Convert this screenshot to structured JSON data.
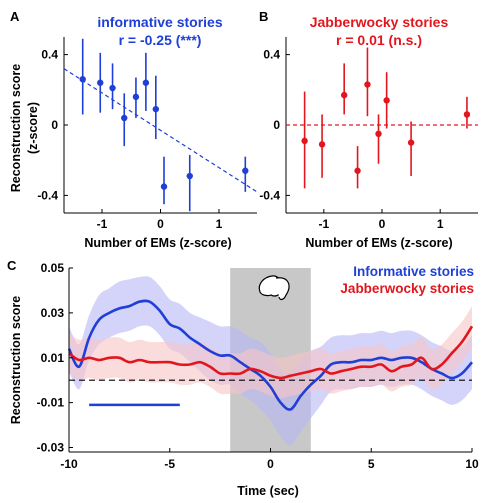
{
  "colors": {
    "informative": "#1f3fd6",
    "jabberwocky": "#e3161e",
    "informative_band": "#b7b8f6",
    "jabberwocky_band": "#f7c5c7",
    "shade": "#c8c8c8"
  },
  "chart_data": [
    {
      "panel": "A",
      "type": "scatter",
      "title": "informative stories",
      "subtitle": "r = -0.25 (***)",
      "xlabel": "Number of EMs (z-score)",
      "ylabel": "Reconstruction score",
      "ylabel2": "(z-score)",
      "xlim": [
        -1.65,
        1.65
      ],
      "ylim": [
        -0.5,
        0.5
      ],
      "xticks": [
        -1,
        0,
        1
      ],
      "yticks": [
        -0.4,
        0,
        0.4
      ],
      "xtick_labels": [
        "-1",
        "0",
        "1"
      ],
      "ytick_labels": [
        "-0.4",
        "0",
        "0.4"
      ],
      "trend_line": {
        "style": "dashed",
        "x": [
          -1.65,
          1.65
        ],
        "y": [
          0.32,
          -0.38
        ]
      },
      "points": [
        {
          "x": -1.33,
          "y": 0.26,
          "lo": 0.06,
          "hi": 0.49
        },
        {
          "x": -1.03,
          "y": 0.24,
          "lo": 0.07,
          "hi": 0.41
        },
        {
          "x": -0.82,
          "y": 0.21,
          "lo": 0.09,
          "hi": 0.35
        },
        {
          "x": -0.62,
          "y": 0.04,
          "lo": -0.12,
          "hi": 0.18
        },
        {
          "x": -0.42,
          "y": 0.16,
          "lo": 0.04,
          "hi": 0.27
        },
        {
          "x": -0.25,
          "y": 0.24,
          "lo": 0.08,
          "hi": 0.41
        },
        {
          "x": -0.08,
          "y": 0.09,
          "lo": -0.08,
          "hi": 0.28
        },
        {
          "x": 0.06,
          "y": -0.35,
          "lo": -0.45,
          "hi": -0.18
        },
        {
          "x": 0.5,
          "y": -0.29,
          "lo": -0.49,
          "hi": -0.17
        },
        {
          "x": 1.45,
          "y": -0.26,
          "lo": -0.38,
          "hi": -0.18
        }
      ]
    },
    {
      "panel": "B",
      "type": "scatter",
      "title": "Jabberwocky stories",
      "subtitle": "r = 0.01 (n.s.)",
      "xlabel": "Number of EMs (z-score)",
      "ylabel": "",
      "xlim": [
        -1.65,
        1.65
      ],
      "ylim": [
        -0.5,
        0.5
      ],
      "xticks": [
        -1,
        0,
        1
      ],
      "yticks": [
        -0.4,
        0,
        0.4
      ],
      "xtick_labels": [
        "-1",
        "0",
        "1"
      ],
      "ytick_labels": [
        "-0.4",
        "0",
        "0.4"
      ],
      "reference_line": {
        "style": "dashed",
        "y": 0
      },
      "points": [
        {
          "x": -1.33,
          "y": -0.09,
          "lo": -0.36,
          "hi": 0.19
        },
        {
          "x": -1.03,
          "y": -0.11,
          "lo": -0.3,
          "hi": 0.06
        },
        {
          "x": -0.65,
          "y": 0.17,
          "lo": 0.06,
          "hi": 0.35
        },
        {
          "x": -0.42,
          "y": -0.26,
          "lo": -0.36,
          "hi": -0.12
        },
        {
          "x": -0.25,
          "y": 0.23,
          "lo": 0.05,
          "hi": 0.44
        },
        {
          "x": -0.06,
          "y": -0.05,
          "lo": -0.22,
          "hi": 0.06
        },
        {
          "x": 0.08,
          "y": 0.14,
          "lo": -0.02,
          "hi": 0.3
        },
        {
          "x": 0.5,
          "y": -0.1,
          "lo": -0.29,
          "hi": 0.02
        },
        {
          "x": 1.46,
          "y": 0.06,
          "lo": -0.02,
          "hi": 0.16
        }
      ]
    },
    {
      "panel": "C",
      "type": "line",
      "xlabel": "Time (sec)",
      "ylabel": "Reconstruction score",
      "xlim": [
        -10,
        10
      ],
      "ylim": [
        -0.032,
        0.05
      ],
      "xticks": [
        -10,
        -5,
        0,
        5,
        10
      ],
      "yticks": [
        0.05,
        0.03,
        0.01,
        -0.01,
        -0.03
      ],
      "xtick_labels": [
        "-10",
        "-5",
        "0",
        "5",
        "10"
      ],
      "ytick_labels": [
        "0.05",
        "0.03",
        "0.01",
        "-0.01",
        "-0.03"
      ],
      "legend_placement": "top-right",
      "shaded_interval": [
        -2,
        2
      ],
      "reference_line": {
        "style": "dashed",
        "y": 0
      },
      "significance_bar": {
        "x": [
          -9,
          -4.5
        ],
        "y": -0.011
      },
      "x": [
        -10,
        -9.5,
        -9,
        -8.5,
        -8,
        -7.5,
        -7,
        -6.5,
        -6,
        -5.5,
        -5,
        -4.5,
        -4,
        -3.5,
        -3,
        -2.5,
        -2,
        -1.5,
        -1,
        -0.5,
        0,
        0.5,
        1,
        1.5,
        2,
        2.5,
        3,
        3.5,
        4,
        4.5,
        5,
        5.5,
        6,
        6.5,
        7,
        7.5,
        8,
        8.5,
        9,
        9.5,
        10
      ],
      "series": [
        {
          "name": "Informative stories",
          "values": [
            0.014,
            0.006,
            0.019,
            0.027,
            0.03,
            0.032,
            0.033,
            0.035,
            0.035,
            0.031,
            0.025,
            0.023,
            0.019,
            0.016,
            0.013,
            0.011,
            0.011,
            0.008,
            0.005,
            0.002,
            -0.003,
            -0.01,
            -0.013,
            -0.007,
            -0.002,
            0.002,
            0.007,
            0.008,
            0.008,
            0.009,
            0.009,
            0.01,
            0.009,
            0.01,
            0.01,
            0.008,
            0.005,
            0.003,
            0.001,
            0.003,
            0.008
          ],
          "lower": [
            0.004,
            -0.004,
            0.009,
            0.016,
            0.019,
            0.021,
            0.022,
            0.024,
            0.024,
            0.02,
            0.014,
            0.012,
            0.008,
            0.004,
            0.0,
            -0.002,
            -0.002,
            -0.006,
            -0.009,
            -0.013,
            -0.018,
            -0.025,
            -0.029,
            -0.023,
            -0.017,
            -0.011,
            -0.005,
            -0.004,
            -0.004,
            -0.003,
            -0.003,
            -0.002,
            -0.003,
            -0.002,
            -0.002,
            -0.004,
            -0.007,
            -0.009,
            -0.011,
            -0.009,
            -0.004
          ],
          "upper": [
            0.024,
            0.016,
            0.029,
            0.038,
            0.041,
            0.044,
            0.045,
            0.046,
            0.046,
            0.042,
            0.036,
            0.034,
            0.03,
            0.028,
            0.026,
            0.024,
            0.024,
            0.022,
            0.019,
            0.017,
            0.012,
            0.005,
            0.003,
            0.009,
            0.013,
            0.015,
            0.019,
            0.02,
            0.02,
            0.021,
            0.021,
            0.022,
            0.021,
            0.022,
            0.022,
            0.02,
            0.017,
            0.015,
            0.013,
            0.015,
            0.02
          ]
        },
        {
          "name": "Jabberwocky stories",
          "values": [
            0.012,
            0.009,
            0.01,
            0.009,
            0.01,
            0.01,
            0.008,
            0.009,
            0.008,
            0.008,
            0.008,
            0.007,
            0.007,
            0.008,
            0.006,
            0.003,
            0.003,
            0.003,
            0.005,
            0.004,
            0.002,
            0.001,
            0.002,
            0.003,
            0.004,
            0.005,
            0.003,
            0.004,
            0.005,
            0.006,
            0.006,
            0.007,
            0.004,
            0.006,
            0.007,
            0.01,
            0.005,
            0.007,
            0.012,
            0.017,
            0.024
          ],
          "lower": [
            0.003,
            0.0,
            0.001,
            0.0,
            0.001,
            0.001,
            -0.001,
            0.0,
            -0.001,
            -0.001,
            -0.001,
            -0.002,
            -0.002,
            -0.001,
            -0.003,
            -0.006,
            -0.006,
            -0.006,
            -0.004,
            -0.005,
            -0.007,
            -0.008,
            -0.007,
            -0.006,
            -0.005,
            -0.004,
            -0.006,
            -0.005,
            -0.004,
            -0.003,
            -0.003,
            -0.002,
            -0.005,
            -0.003,
            -0.002,
            0.001,
            -0.004,
            -0.002,
            0.003,
            0.008,
            0.015
          ],
          "upper": [
            0.021,
            0.018,
            0.019,
            0.018,
            0.019,
            0.019,
            0.017,
            0.018,
            0.017,
            0.017,
            0.017,
            0.016,
            0.016,
            0.017,
            0.015,
            0.012,
            0.012,
            0.012,
            0.014,
            0.013,
            0.011,
            0.01,
            0.011,
            0.012,
            0.013,
            0.014,
            0.012,
            0.013,
            0.014,
            0.015,
            0.015,
            0.016,
            0.013,
            0.015,
            0.016,
            0.019,
            0.014,
            0.016,
            0.021,
            0.026,
            0.033
          ]
        }
      ]
    }
  ]
}
